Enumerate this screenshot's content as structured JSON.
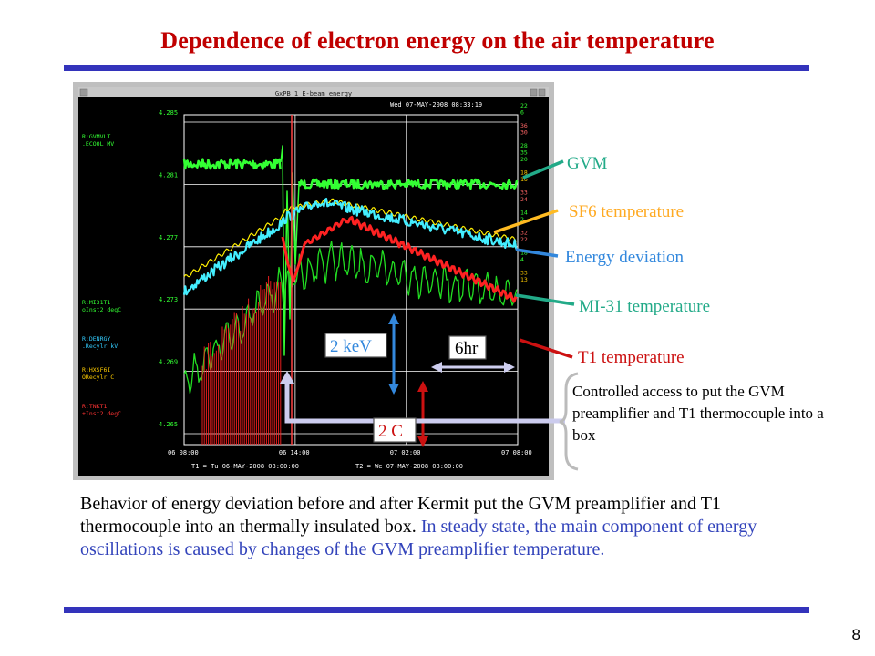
{
  "slide": {
    "title": "Dependence of electron energy on the air temperature",
    "page_number": "8"
  },
  "window": {
    "title": "GxPB 1 E-beam energy",
    "timestamp": "Wed 07-MAY-2008 08:33:19",
    "y_ticks": [
      "4.285",
      "4.281",
      "4.277",
      "4.273",
      "4.269",
      "4.265"
    ],
    "x_ticks": [
      "06 08:00",
      "06 14:00",
      "07 02:00",
      "07 08:00"
    ],
    "t1": "T1 = Tu 06-MAY-2008 08:00:00",
    "t2": "T2 = We 07-MAY-2008 08:00:00",
    "legend": [
      {
        "id": "gvm",
        "line1": "R:GVMVLT",
        "line2": ".ECOOL MV",
        "color": "#33ff33"
      },
      {
        "id": "mi31",
        "line1": "R:MI31T1",
        "line2": "oInst2 degC",
        "color": "#33ff33"
      },
      {
        "id": "energy",
        "line1": "R:DENRGY",
        "line2": ".Recylr kV",
        "color": "#33ccff"
      },
      {
        "id": "sf6",
        "line1": "R:HXSF6I",
        "line2": "ORecylr C",
        "color": "#ffcc00"
      },
      {
        "id": "t1",
        "line1": "R:TNKT1",
        "line2": "+Inst2 degC",
        "color": "#ff3333"
      }
    ],
    "right_scale": [
      {
        "values": [
          "22",
          "6"
        ],
        "color": "#33ff33"
      },
      {
        "values": [
          "36",
          "30"
        ],
        "color": "#ff6666"
      },
      {
        "values": [
          "28",
          "35",
          "20"
        ],
        "color": "#33ff33"
      },
      {
        "values": [
          "18",
          "16"
        ],
        "color": "#ffcc00"
      },
      {
        "values": [
          "33",
          "24"
        ],
        "color": "#ff6666"
      },
      {
        "values": [
          "14",
          "2"
        ],
        "color": "#33ff33"
      },
      {
        "values": [
          "32",
          "22"
        ],
        "color": "#ff6666"
      },
      {
        "values": [
          "18",
          "4"
        ],
        "color": "#33ff33"
      },
      {
        "values": [
          "33",
          "13"
        ],
        "color": "#ffcc00"
      }
    ]
  },
  "annotations": {
    "gvm": {
      "text": "GVM",
      "color": "#22aa88"
    },
    "sf6": {
      "text": "SF6 temperature",
      "color": "#ffaa22"
    },
    "energy": {
      "text": "Energy deviation",
      "color": "#3388dd"
    },
    "mi31": {
      "text": "MI-31 temperature",
      "color": "#22aa88"
    },
    "t1": {
      "text": "T1 temperature",
      "color": "#cc1111"
    },
    "kev": {
      "text": "2 keV",
      "color": "#3388dd"
    },
    "hr": {
      "text": "6hr",
      "color": "#000000"
    },
    "c": {
      "text": "2 C",
      "color": "#cc1111"
    }
  },
  "access_note": "Controlled access to put the GVM preamplifier and T1 thermocouple into a box",
  "caption": {
    "part1": "Behavior of energy deviation before and after Kermit put the GVM preamplifier and T1 thermocouple into an thermally  insulated box.",
    "part2": "In steady state, the main component of energy oscillations is caused by changes of the GVM preamplifier temperature."
  }
}
